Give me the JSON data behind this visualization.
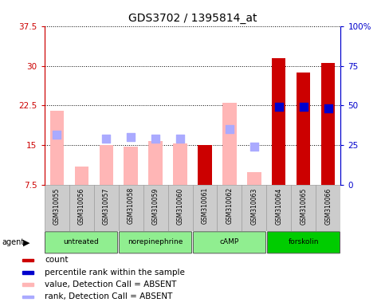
{
  "title": "GDS3702 / 1395814_at",
  "samples": [
    "GSM310055",
    "GSM310056",
    "GSM310057",
    "GSM310058",
    "GSM310059",
    "GSM310060",
    "GSM310061",
    "GSM310062",
    "GSM310063",
    "GSM310064",
    "GSM310065",
    "GSM310066"
  ],
  "count_values": [
    null,
    null,
    null,
    null,
    null,
    null,
    15.0,
    null,
    null,
    31.5,
    28.8,
    30.5
  ],
  "rank_values": [
    null,
    null,
    null,
    null,
    null,
    null,
    null,
    null,
    null,
    22.3,
    22.2,
    22.0
  ],
  "value_absent": [
    21.5,
    11.0,
    15.0,
    14.8,
    15.8,
    15.3,
    null,
    23.0,
    10.0,
    null,
    null,
    null
  ],
  "rank_absent": [
    17.0,
    null,
    16.3,
    16.5,
    16.2,
    16.2,
    null,
    18.0,
    14.8,
    null,
    null,
    null
  ],
  "ylim_left": [
    7.5,
    37.5
  ],
  "ylim_right": [
    0,
    100
  ],
  "yticks_left": [
    7.5,
    15.0,
    22.5,
    30.0,
    37.5
  ],
  "yticks_right": [
    0,
    25,
    50,
    75,
    100
  ],
  "ytick_labels_left": [
    "7.5",
    "15",
    "22.5",
    "30",
    "37.5"
  ],
  "ytick_labels_right": [
    "0",
    "25",
    "50",
    "75",
    "100%"
  ],
  "left_axis_color": "#cc0000",
  "right_axis_color": "#0000cc",
  "bar_color_count": "#cc0000",
  "bar_color_value_absent": "#ffb6b6",
  "dot_color_rank": "#0000cc",
  "dot_color_rank_absent": "#aaaaff",
  "grid_color": "#000000",
  "groups": [
    {
      "label": "untreated",
      "start": 0,
      "end": 2,
      "color": "#90ee90"
    },
    {
      "label": "norepinephrine",
      "start": 3,
      "end": 5,
      "color": "#90ee90"
    },
    {
      "label": "cAMP",
      "start": 6,
      "end": 8,
      "color": "#90ee90"
    },
    {
      "label": "forskolin",
      "start": 9,
      "end": 11,
      "color": "#00cc00"
    }
  ],
  "legend_items": [
    {
      "color": "#cc0000",
      "label": "count"
    },
    {
      "color": "#0000cc",
      "label": "percentile rank within the sample"
    },
    {
      "color": "#ffb6b6",
      "label": "value, Detection Call = ABSENT"
    },
    {
      "color": "#aaaaff",
      "label": "rank, Detection Call = ABSENT"
    }
  ],
  "bar_width": 0.55,
  "dot_size": 50,
  "fig_bg": "#ffffff",
  "plot_bg": "#ffffff",
  "sample_box_color": "#cccccc",
  "title_fontsize": 10,
  "axis_fontsize": 7.5,
  "tick_fontsize": 7.5,
  "legend_fontsize": 7.5
}
